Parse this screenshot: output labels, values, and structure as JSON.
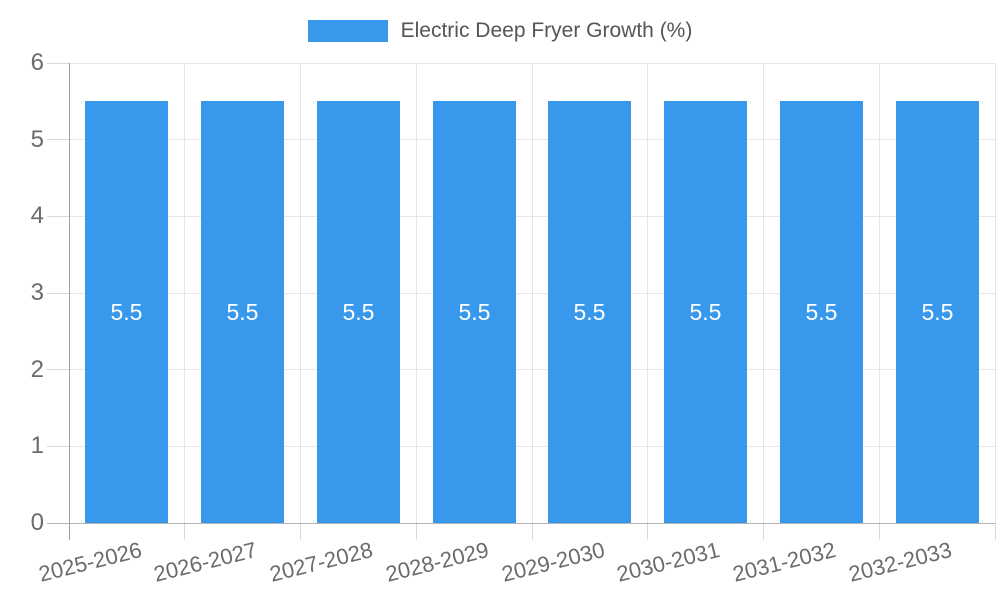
{
  "chart_data": {
    "type": "bar",
    "title": "",
    "categories": [
      "2025-2026",
      "2026-2027",
      "2027-2028",
      "2028-2029",
      "2029-2030",
      "2030-2031",
      "2031-2032",
      "2032-2033"
    ],
    "series": [
      {
        "name": "Electric Deep Fryer Growth (%)",
        "values": [
          5.5,
          5.5,
          5.5,
          5.5,
          5.5,
          5.5,
          5.5,
          5.5
        ]
      }
    ],
    "bar_value_label_format": "1-decimal",
    "xlabel": "",
    "ylabel": "",
    "ylim": [
      0,
      6
    ],
    "yticks": [
      0,
      1,
      2,
      3,
      4,
      5,
      6
    ],
    "grid": true,
    "legend_position": "top"
  },
  "colors": {
    "bar": "#3899ec",
    "bar_value_label": "#ffffff",
    "grid_line": "#e6e6e6",
    "tick_mark": "#d9d9d9",
    "axis_line": "#9e9e9e",
    "bottom_line": "#b3b3b3",
    "tick_text": "#6b6b6b",
    "legend_text": "#555555",
    "background": "#ffffff"
  }
}
